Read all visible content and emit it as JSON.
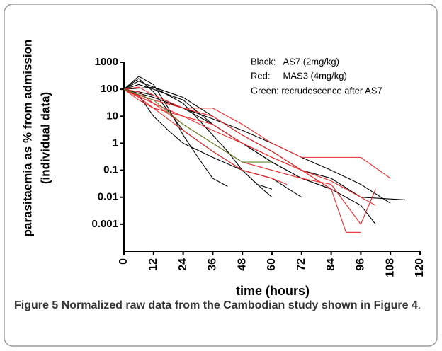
{
  "chart_data": {
    "type": "line",
    "ylabel": [
      "parasitaemia as % from admission",
      "(individual data)"
    ],
    "xlabel": "time (hours)",
    "annotations": [
      "Black:   AS7 (2mg/kg)",
      "Red:     MAS3 (4mg/kg)",
      "Green: recrudescence after AS7"
    ],
    "log_y": true,
    "xlim": [
      0,
      120
    ],
    "xticks": [
      0,
      12,
      24,
      36,
      48,
      60,
      72,
      84,
      96,
      108,
      120
    ],
    "ylim": [
      0.0001,
      1000
    ],
    "yticks": [
      0.001,
      0.01,
      0.1,
      1,
      10,
      100,
      1000
    ],
    "series": [
      {
        "color": "#000000",
        "x": [
          0,
          6,
          12,
          18,
          24,
          30,
          36,
          42
        ],
        "values": [
          100,
          300,
          150,
          20,
          2,
          0.3,
          0.05,
          0.025
        ]
      },
      {
        "color": "#000000",
        "x": [
          0,
          6,
          12,
          18,
          24,
          30,
          36,
          42,
          48,
          54,
          60
        ],
        "values": [
          100,
          200,
          120,
          60,
          30,
          8,
          2,
          0.5,
          0.1,
          0.03,
          0.02
        ]
      },
      {
        "color": "#000000",
        "x": [
          0,
          6,
          12,
          24,
          36,
          48,
          60,
          72,
          84
        ],
        "values": [
          100,
          150,
          100,
          40,
          5,
          1,
          0.2,
          0.05,
          0.02
        ]
      },
      {
        "color": "#000000",
        "x": [
          0,
          6,
          12,
          24,
          36,
          48,
          60,
          72,
          84,
          96,
          108
        ],
        "values": [
          100,
          80,
          60,
          20,
          8,
          3,
          1,
          0.3,
          0.1,
          0.03,
          0.006
        ]
      },
      {
        "color": "#000000",
        "x": [
          0,
          6,
          12,
          18,
          24,
          36,
          48,
          60,
          72
        ],
        "values": [
          100,
          60,
          10,
          3,
          1,
          0.3,
          0.1,
          0.05,
          0.01
        ]
      },
      {
        "color": "#000000",
        "x": [
          0,
          12,
          24,
          36,
          48,
          60,
          72,
          84,
          96,
          114
        ],
        "values": [
          100,
          120,
          50,
          10,
          2,
          0.5,
          0.1,
          0.05,
          0.01,
          0.008
        ]
      },
      {
        "color": "#000000",
        "x": [
          0,
          6,
          12,
          24,
          36,
          48,
          54,
          60
        ],
        "values": [
          100,
          250,
          80,
          3,
          0.5,
          0.1,
          0.03,
          0.01
        ]
      },
      {
        "color": "#000000",
        "x": [
          0,
          12,
          24,
          36,
          48,
          60,
          72,
          84,
          96,
          102
        ],
        "values": [
          100,
          50,
          20,
          5,
          1,
          0.2,
          0.05,
          0.02,
          0.005,
          0.001
        ]
      },
      {
        "color": "#e8282b",
        "x": [
          0,
          6,
          12,
          24,
          36,
          48,
          60,
          72,
          84,
          96,
          108
        ],
        "values": [
          100,
          60,
          40,
          20,
          20,
          5,
          1,
          0.3,
          0.3,
          0.3,
          0.05
        ]
      },
      {
        "color": "#e8282b",
        "x": [
          0,
          6,
          12,
          24,
          36,
          48,
          60,
          72,
          84,
          90,
          96
        ],
        "values": [
          100,
          40,
          20,
          10,
          3,
          1,
          0.3,
          0.1,
          0.02,
          0.0005,
          0.0005
        ]
      },
      {
        "color": "#e8282b",
        "x": [
          0,
          6,
          12,
          24,
          36,
          48,
          60,
          72,
          84,
          96,
          102
        ],
        "values": [
          100,
          80,
          30,
          5,
          1,
          0.2,
          0.1,
          0.05,
          0.03,
          0.001,
          0.02
        ]
      },
      {
        "color": "#e8282b",
        "x": [
          0,
          6,
          12,
          24,
          36,
          48,
          60,
          72,
          84
        ],
        "values": [
          100,
          120,
          60,
          20,
          10,
          2,
          0.5,
          0.1,
          0.02
        ]
      },
      {
        "color": "#e8282b",
        "x": [
          0,
          6,
          12,
          24,
          36,
          48,
          60,
          66
        ],
        "values": [
          100,
          50,
          20,
          3,
          0.5,
          0.1,
          0.05,
          0.03
        ]
      },
      {
        "color": "#e8282b",
        "x": [
          0,
          12,
          24,
          36,
          48,
          60,
          72,
          84,
          96,
          102
        ],
        "values": [
          100,
          30,
          10,
          5,
          1,
          0.3,
          0.1,
          0.04,
          0.01,
          0.005
        ]
      },
      {
        "color": "#5a8a2a",
        "x": [
          0,
          12,
          24,
          36,
          48,
          60
        ],
        "values": [
          100,
          40,
          5,
          1,
          0.2,
          0.2
        ]
      }
    ]
  },
  "caption": {
    "label": "Figure 5",
    "text": "Normalized raw data from the Cambodian study shown in Figure 4",
    "end": "."
  }
}
